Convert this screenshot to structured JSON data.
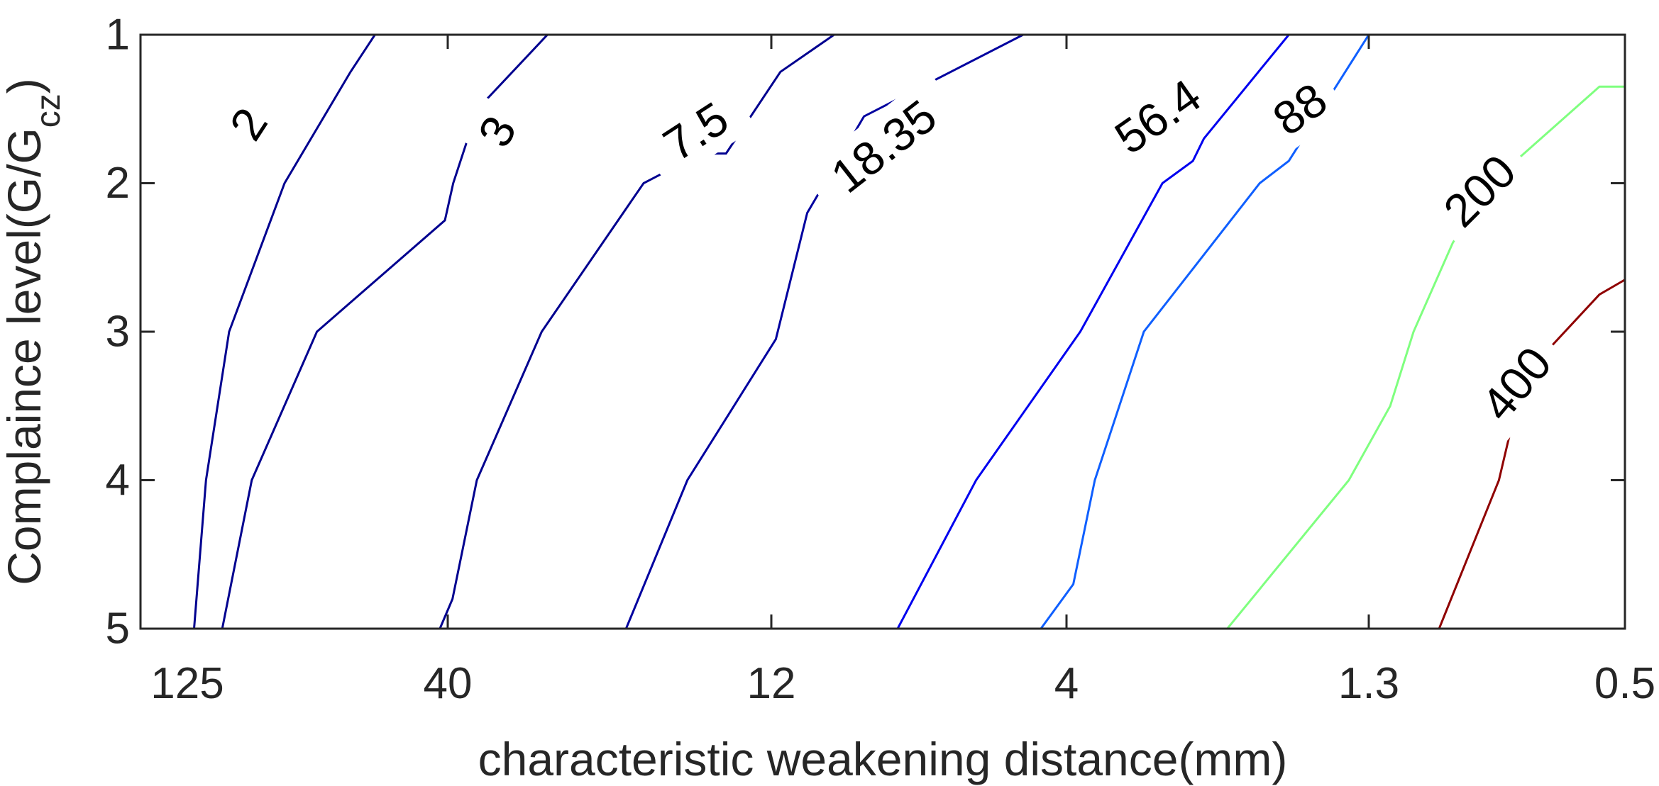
{
  "chart_data": {
    "type": "contour",
    "xlabel": "characteristic weakening distance(mm)",
    "ylabel_main": "Complaince level(G/G",
    "ylabel_sub": "cz",
    "ylabel_close": ")",
    "x_tick_labels": [
      "125",
      "40",
      "12",
      "4",
      "1.3",
      "0.5"
    ],
    "y_tick_labels": [
      "1",
      "2",
      "3",
      "4",
      "5"
    ],
    "x_ticks": [
      125,
      40,
      12,
      4,
      1.3,
      0.5
    ],
    "y_ticks": [
      1,
      2,
      3,
      4,
      5
    ],
    "xlim": [
      125,
      0.5
    ],
    "ylim": [
      1,
      5
    ],
    "x_scale": "categorical, reversed",
    "y_direction": "reversed",
    "grid": false,
    "contours": [
      {
        "level": "2",
        "color": "#00008f",
        "points": [
          [
            130.4,
            5
          ],
          [
            115.2,
            4
          ],
          [
            104.1,
            3
          ],
          [
            81.7,
            2
          ],
          [
            61.2,
            1.25
          ],
          [
            55,
            1
          ]
        ],
        "label_at": [
          1.6,
          95.7
        ],
        "label_rotation": -57
      },
      {
        "level": "3",
        "color": "#00008f",
        "points": [
          [
            107.3,
            5
          ],
          [
            94.3,
            4
          ],
          [
            70.9,
            3
          ],
          [
            40.5,
            2.25
          ],
          [
            39.2,
            2
          ],
          [
            35.8,
            1.5
          ],
          [
            27.6,
            1
          ]
        ],
        "label_at": [
          1.65,
          33.3
        ],
        "label_rotation": -62
      },
      {
        "level": "7.5",
        "color": "#00008f",
        "points": [
          [
            41.4,
            5
          ],
          [
            39.3,
            4.8
          ],
          [
            35.9,
            4
          ],
          [
            28.2,
            3
          ],
          [
            19.3,
            2
          ],
          [
            15.6,
            1.8
          ],
          [
            14.2,
            1.8
          ],
          [
            11.6,
            1.25
          ],
          [
            9.5,
            1
          ]
        ],
        "label_at": [
          1.65,
          15.9
        ],
        "label_rotation": -33
      },
      {
        "level": "18.35",
        "color": "#00009f",
        "points": [
          [
            20.6,
            5
          ],
          [
            16.4,
            4
          ],
          [
            11.8,
            3.05
          ],
          [
            10.5,
            2.2
          ],
          [
            8.5,
            1.55
          ],
          [
            4.7,
            1
          ]
        ],
        "label_at": [
          1.75,
          7.9
        ],
        "label_rotation": -38
      },
      {
        "level": "56.4",
        "color": "#0000ef",
        "points": [
          [
            7.5,
            5
          ],
          [
            5.6,
            4
          ],
          [
            3.8,
            3
          ],
          [
            2.8,
            2
          ],
          [
            2.5,
            1.85
          ],
          [
            2.4,
            1.7
          ],
          [
            1.75,
            1
          ]
        ],
        "label_at": [
          1.55,
          2.85
        ],
        "label_rotation": -35
      },
      {
        "level": "88",
        "color": "#0f5fff",
        "points": [
          [
            4.4,
            5
          ],
          [
            3.9,
            4.7
          ],
          [
            3.6,
            4
          ],
          [
            3.0,
            3
          ],
          [
            1.95,
            2
          ],
          [
            1.75,
            1.85
          ],
          [
            1.3,
            1
          ]
        ],
        "label_at": [
          1.5,
          1.68
        ],
        "label_rotation": -35
      },
      {
        "level": "200",
        "color": "#7fff7f",
        "points": [
          [
            2.2,
            5
          ],
          [
            1.4,
            4
          ],
          [
            1.2,
            3.5
          ],
          [
            1.1,
            3
          ],
          [
            0.95,
            2.4
          ],
          [
            0.8,
            1.95
          ],
          [
            0.55,
            1.35
          ],
          [
            0.5,
            1.35
          ]
        ],
        "label_at": [
          2.05,
          0.86
        ],
        "label_rotation": -45
      },
      {
        "level": "400",
        "color": "#8f0000",
        "points": [
          [
            1.0,
            5
          ],
          [
            0.8,
            4
          ],
          [
            0.73,
            3.3
          ],
          [
            0.55,
            2.75
          ],
          [
            0.5,
            2.65
          ]
        ],
        "label_at": [
          3.35,
          0.75
        ],
        "label_rotation": -50
      }
    ]
  }
}
